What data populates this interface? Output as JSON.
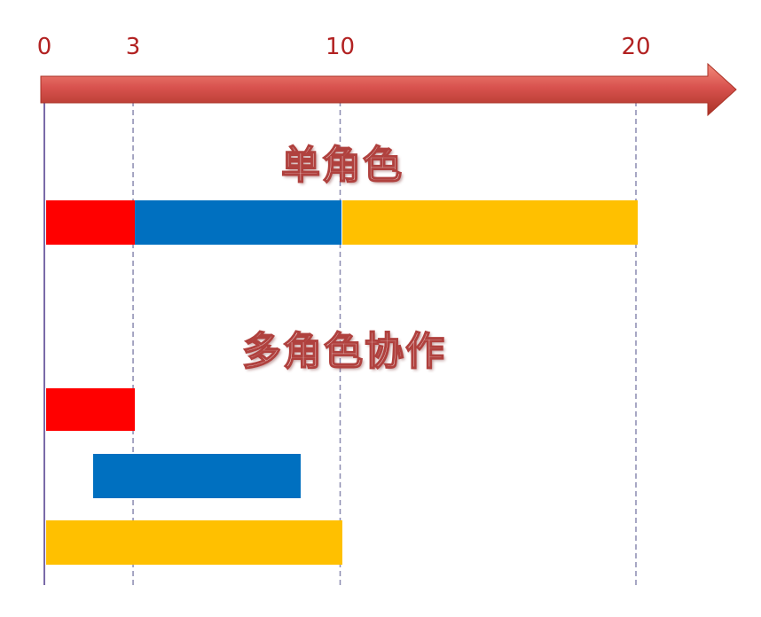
{
  "axis": {
    "ticks": [
      {
        "value": 0,
        "label": "0"
      },
      {
        "value": 3,
        "label": "3"
      },
      {
        "value": 10,
        "label": "10"
      },
      {
        "value": 20,
        "label": "20"
      }
    ]
  },
  "sections": {
    "single": {
      "title": "单角色"
    },
    "multi": {
      "title": "多角色协作"
    }
  },
  "colors": {
    "red": "#ff0000",
    "blue": "#0070c0",
    "yellow": "#ffc000",
    "arrow": "#c0392b",
    "grid": "#8a8ab0"
  },
  "tasks": {
    "single": [
      {
        "start": 0,
        "end": 3,
        "color": "red"
      },
      {
        "start": 3,
        "end": 10,
        "color": "blue"
      },
      {
        "start": 10,
        "end": 20,
        "color": "yellow"
      }
    ],
    "multi": [
      {
        "start": 0,
        "end": 3,
        "color": "red"
      },
      {
        "start": 1.6,
        "end": 8.6,
        "color": "blue"
      },
      {
        "start": 0,
        "end": 10,
        "color": "yellow"
      }
    ]
  }
}
